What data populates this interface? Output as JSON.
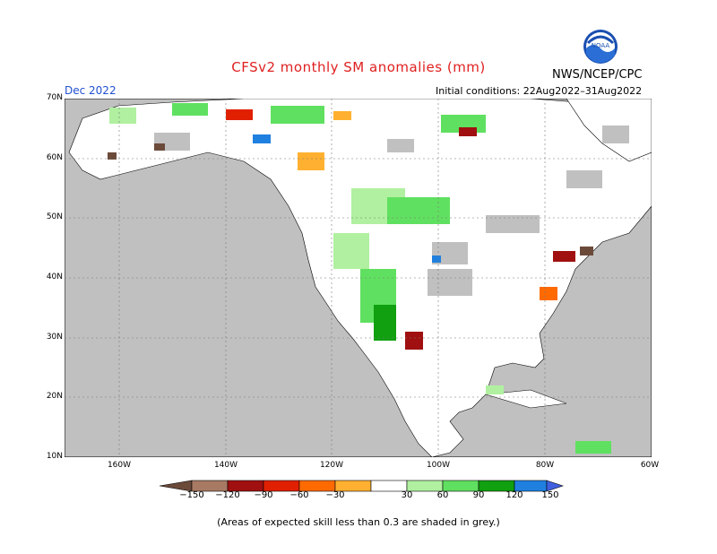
{
  "header": {
    "title": "CFSv2 monthly SM anomalies (mm)",
    "month": "Dec 2022",
    "initial_conditions": "Initial conditions: 22Aug2022–31Aug2022",
    "agency": "NWS/NCEP/CPC",
    "logo_text": "NOAA"
  },
  "map": {
    "lat_labels": [
      "70N",
      "60N",
      "50N",
      "40N",
      "30N",
      "20N",
      "10N"
    ],
    "lon_labels": [
      "160W",
      "140W",
      "120W",
      "100W",
      "80W",
      "60W"
    ],
    "grey_color": "#c0c0c0",
    "land_color": "#ffffff"
  },
  "legend": {
    "labels": [
      "−150",
      "−120",
      "−90",
      "−60",
      "−30",
      "30",
      "60",
      "90",
      "120",
      "150"
    ],
    "colors": [
      "#6b4a3a",
      "#a87a64",
      "#a01010",
      "#e02000",
      "#ff6a00",
      "#ffb030",
      "#ffffff",
      "#b0f0a0",
      "#60e060",
      "#10a010",
      "#2080e0",
      "#4060e0"
    ]
  },
  "footer": {
    "note": "(Areas of expected skill less than 0.3 are shaded in grey.)"
  }
}
